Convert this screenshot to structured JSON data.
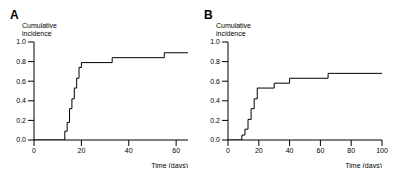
{
  "chart_data": [
    {
      "type": "line",
      "title": "A",
      "y_label": "Cumulative incidence",
      "x_label": "Time (days)",
      "x": [
        0,
        13,
        14,
        15,
        16,
        17,
        18,
        19,
        20,
        33,
        55,
        65
      ],
      "values": [
        0,
        0.09,
        0.18,
        0.32,
        0.42,
        0.53,
        0.63,
        0.74,
        0.79,
        0.84,
        0.89,
        0.89
      ],
      "color": "#000000",
      "line_style": "step",
      "xlim": [
        0,
        65
      ],
      "xticks": [
        0,
        20,
        40,
        60
      ],
      "ylim": [
        0,
        1
      ],
      "yticks": [
        {
          "value": 0,
          "label": "0.0"
        },
        {
          "value": 0.2,
          "label": "0.2"
        },
        {
          "value": 0.4,
          "label": "0.4"
        },
        {
          "value": 0.6,
          "label": "0.6"
        },
        {
          "value": 0.8,
          "label": "0.8"
        },
        {
          "value": 1,
          "label": "1.0"
        }
      ]
    },
    {
      "type": "line",
      "title": "B",
      "y_label": "Cumulative incidence",
      "x_label": "Time (days)",
      "x": [
        0,
        9,
        11,
        13,
        15,
        17,
        19,
        30,
        40,
        65,
        100
      ],
      "values": [
        0,
        0.05,
        0.11,
        0.21,
        0.32,
        0.42,
        0.53,
        0.58,
        0.63,
        0.68,
        0.68
      ],
      "color": "#000000",
      "line_style": "step",
      "xlim": [
        0,
        100
      ],
      "xticks": [
        0,
        20,
        40,
        60,
        80,
        100
      ],
      "ylim": [
        0,
        1
      ],
      "yticks": [
        {
          "value": 0,
          "label": "0.0"
        },
        {
          "value": 0.2,
          "label": "0.2"
        },
        {
          "value": 0.4,
          "label": "0.4"
        },
        {
          "value": 0.6,
          "label": "0.6"
        },
        {
          "value": 0.8,
          "label": "0.8"
        },
        {
          "value": 1,
          "label": "1.0"
        }
      ]
    }
  ]
}
